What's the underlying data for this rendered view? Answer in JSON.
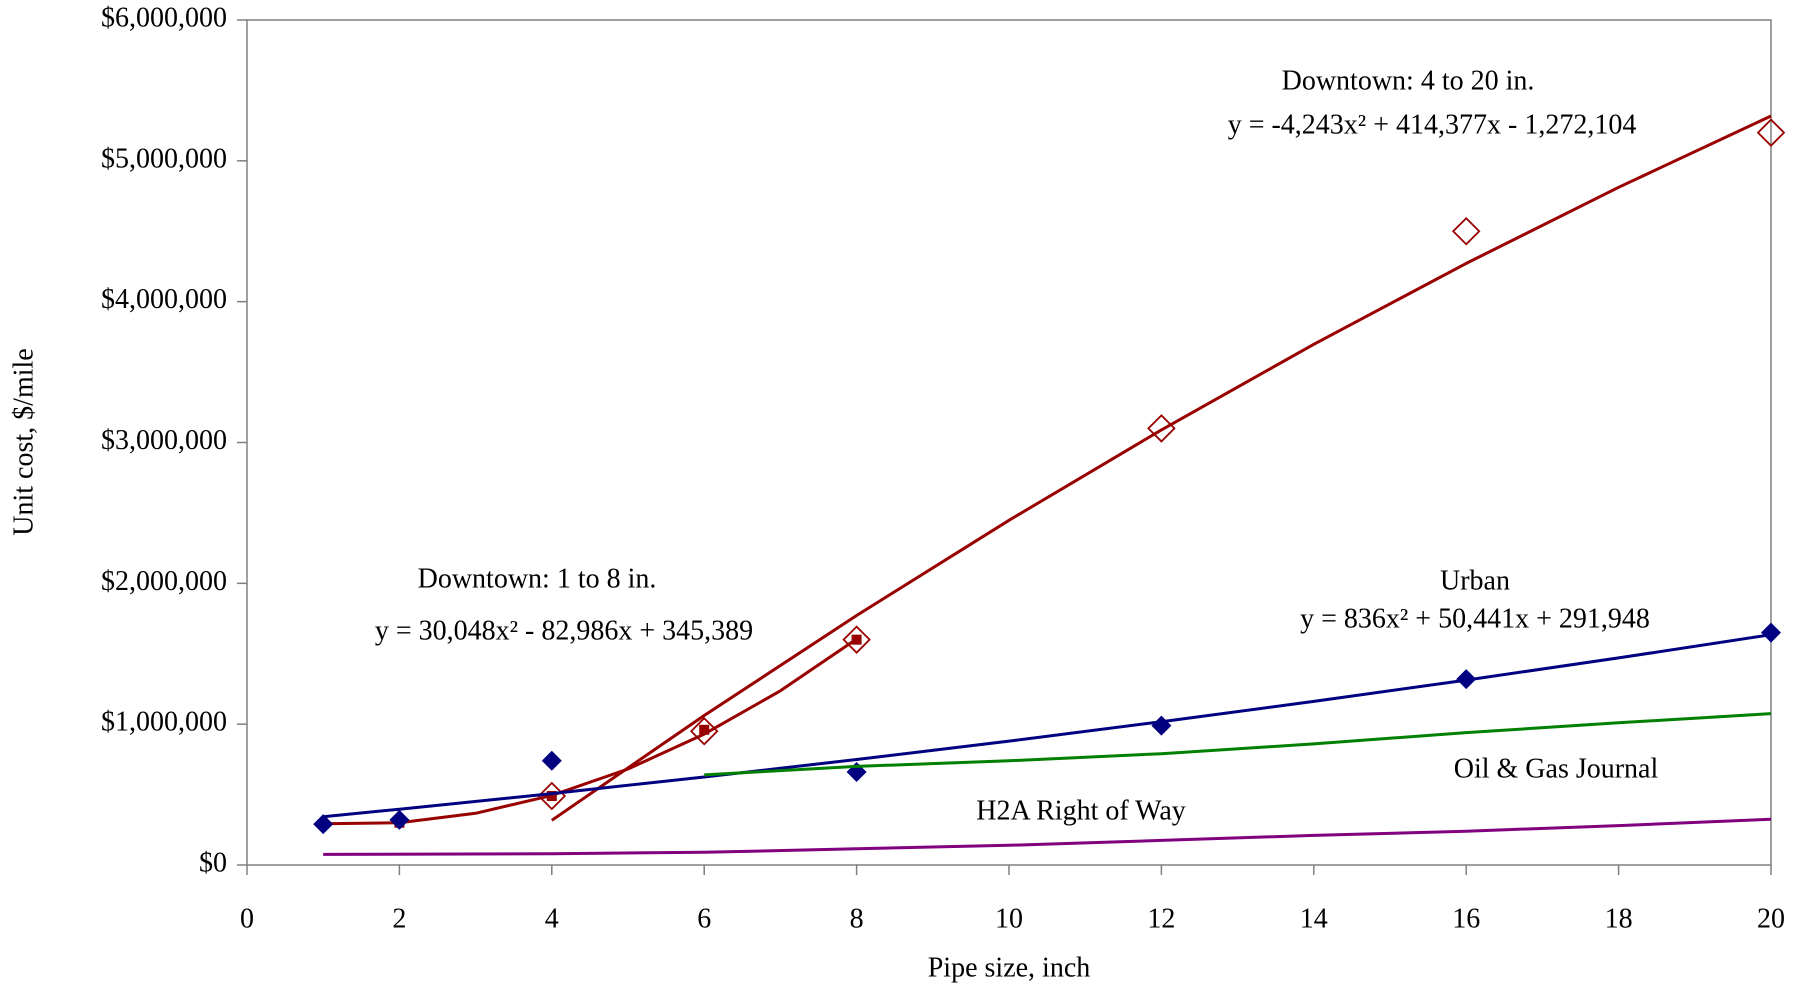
{
  "chart_data": {
    "type": "scatter",
    "xlabel": "Pipe size, inch",
    "ylabel": "Unit cost, $/mile",
    "xlim": [
      0,
      20
    ],
    "xticks": [
      0,
      2,
      4,
      6,
      8,
      10,
      12,
      14,
      16,
      18,
      20
    ],
    "ylim": [
      0,
      6000000
    ],
    "yticks": [
      {
        "value": 0,
        "label": "$0"
      },
      {
        "value": 1000000,
        "label": "$1,000,000"
      },
      {
        "value": 2000000,
        "label": "$2,000,000"
      },
      {
        "value": 3000000,
        "label": "$3,000,000"
      },
      {
        "value": 4000000,
        "label": "$4,000,000"
      },
      {
        "value": 5000000,
        "label": "$5,000,000"
      },
      {
        "value": 6000000,
        "label": "$6,000,000"
      }
    ],
    "series": [
      {
        "name": "Downtown:  4 to 20 in.",
        "color": "#990000",
        "marker": "open-diamond",
        "x": [
          4,
          6,
          8,
          12,
          16,
          20
        ],
        "values": [
          490000,
          950000,
          1600000,
          3100000,
          4500000,
          5200000
        ],
        "trend": {
          "equation": "y = -4,243x² + 414,377x - 1,272,104",
          "x": [
            4,
            6,
            8,
            10,
            12,
            14,
            16,
            18,
            20
          ],
          "values": [
            317516,
            1061410,
            1771360,
            2447366,
            3089428,
            3697546,
            4271720,
            4811950,
            5318236
          ]
        }
      },
      {
        "name": "Downtown:  1 to 8 in.",
        "color": "#990000",
        "marker": "square",
        "x": [
          1,
          2,
          4,
          6,
          8
        ],
        "values": [
          290000,
          300000,
          490000,
          960000,
          1600000
        ],
        "trend": {
          "equation": "y = 30,048x² - 82,986x + 345,389",
          "x": [
            1,
            2,
            3,
            4,
            5,
            6,
            7,
            8
          ],
          "values": [
            292451,
            299609,
            366863,
            494213,
            681659,
            929201,
            1236839,
            1604573
          ]
        }
      },
      {
        "name": "Urban",
        "color": "#000080",
        "marker": "diamond",
        "x": [
          1,
          2,
          4,
          8,
          12,
          16,
          20
        ],
        "values": [
          290000,
          320000,
          740000,
          660000,
          990000,
          1320000,
          1650000
        ],
        "trend": {
          "equation": "y = 836x² + 50,441x + 291,948",
          "x": [
            1,
            2,
            4,
            6,
            8,
            10,
            12,
            14,
            16,
            18,
            20
          ],
          "values": [
            343225,
            396174,
            507088,
            624690,
            748980,
            879958,
            1017624,
            1161978,
            1313020,
            1470750,
            1635168
          ]
        }
      },
      {
        "name": "Oil & Gas Journal",
        "color": "#008000",
        "marker": "none",
        "x": [
          6,
          8,
          10,
          12,
          14,
          16,
          18,
          20
        ],
        "values": [
          640000,
          700000,
          740000,
          790000,
          860000,
          940000,
          1010000,
          1075000
        ]
      },
      {
        "name": "H2A Right of Way",
        "color": "#800080",
        "marker": "none",
        "x": [
          1,
          4,
          6,
          8,
          10,
          12,
          14,
          16,
          18,
          20
        ],
        "values": [
          75000,
          80000,
          90000,
          115000,
          140000,
          175000,
          210000,
          240000,
          280000,
          325000
        ]
      }
    ]
  }
}
